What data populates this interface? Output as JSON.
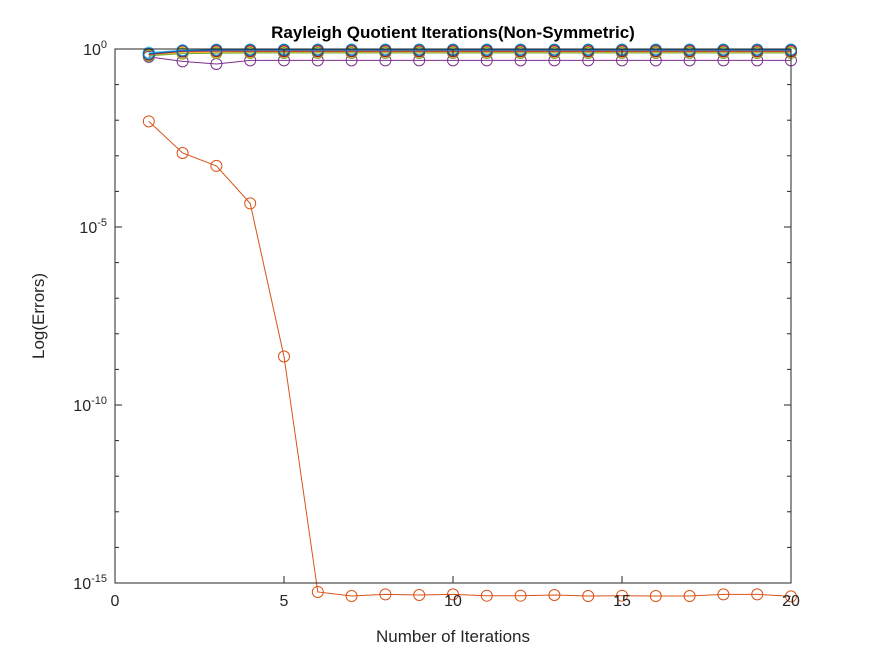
{
  "chart_data": {
    "type": "line",
    "title": "Rayleigh Quotient Iterations(Non-Symmetric)",
    "xlabel": "Number of Iterations",
    "ylabel": "Log(Errors)",
    "xlim": [
      0,
      20
    ],
    "ylim": [
      1e-15,
      1
    ],
    "yscale": "log",
    "grid": false,
    "legend": "none",
    "marker": "circle",
    "xticks": [
      {
        "value": 0,
        "label": "0"
      },
      {
        "value": 5,
        "label": "5"
      },
      {
        "value": 10,
        "label": "10"
      },
      {
        "value": 15,
        "label": "15"
      },
      {
        "value": 20,
        "label": "20"
      }
    ],
    "yticks": [
      {
        "value": 1,
        "base": "10",
        "exp": "0"
      },
      {
        "value": 1e-05,
        "base": "10",
        "exp": "-5"
      },
      {
        "value": 1e-10,
        "base": "10",
        "exp": "-10"
      },
      {
        "value": 1e-15,
        "base": "10",
        "exp": "-15"
      }
    ],
    "x": [
      1,
      2,
      3,
      4,
      5,
      6,
      7,
      8,
      9,
      10,
      11,
      12,
      13,
      14,
      15,
      16,
      17,
      18,
      19,
      20
    ],
    "series": [
      {
        "color": "#0072BD",
        "values": [
          0.72,
          0.88,
          0.9,
          0.91,
          0.91,
          0.91,
          0.91,
          0.91,
          0.91,
          0.91,
          0.91,
          0.91,
          0.91,
          0.91,
          0.91,
          0.91,
          0.91,
          0.91,
          0.91,
          0.91
        ]
      },
      {
        "color": "#D95319",
        "values": [
          0.0093,
          0.0012,
          0.00052,
          4.6e-05,
          2.3e-09,
          5.6e-16,
          4.3e-16,
          4.8e-16,
          4.6e-16,
          4.8e-16,
          4.4e-16,
          4.4e-16,
          4.6e-16,
          4.3e-16,
          4.4e-16,
          4.3e-16,
          4.3e-16,
          4.8e-16,
          4.8e-16,
          4.2e-16
        ]
      },
      {
        "color": "#EDB120",
        "values": [
          0.66,
          0.79,
          0.81,
          0.83,
          0.83,
          0.83,
          0.83,
          0.83,
          0.83,
          0.83,
          0.83,
          0.83,
          0.83,
          0.83,
          0.83,
          0.83,
          0.83,
          0.83,
          0.83,
          0.83
        ]
      },
      {
        "color": "#7E2F8E",
        "values": [
          0.6,
          0.45,
          0.38,
          0.48,
          0.48,
          0.48,
          0.48,
          0.48,
          0.48,
          0.48,
          0.48,
          0.48,
          0.48,
          0.48,
          0.48,
          0.48,
          0.48,
          0.48,
          0.48,
          0.48
        ]
      },
      {
        "color": "#77AC30",
        "values": [
          0.64,
          0.74,
          0.76,
          0.77,
          0.77,
          0.77,
          0.77,
          0.77,
          0.77,
          0.77,
          0.77,
          0.77,
          0.77,
          0.77,
          0.77,
          0.77,
          0.77,
          0.77,
          0.77,
          0.77
        ]
      },
      {
        "color": "#4DBEEE",
        "values": [
          0.8,
          0.92,
          0.93,
          0.93,
          0.93,
          0.93,
          0.93,
          0.93,
          0.93,
          0.93,
          0.93,
          0.93,
          0.93,
          0.93,
          0.93,
          0.93,
          0.93,
          0.93,
          0.93,
          0.93
        ]
      },
      {
        "color": "#A2142F",
        "values": [
          0.7,
          0.86,
          0.87,
          0.87,
          0.87,
          0.87,
          0.87,
          0.87,
          0.87,
          0.87,
          0.87,
          0.87,
          0.87,
          0.87,
          0.87,
          0.87,
          0.87,
          0.87,
          0.87,
          0.87
        ]
      },
      {
        "color": "#0072BD",
        "values": [
          0.74,
          0.9,
          0.95,
          0.96,
          0.96,
          0.96,
          0.96,
          0.96,
          0.96,
          0.96,
          0.96,
          0.96,
          0.96,
          0.96,
          0.96,
          0.96,
          0.96,
          0.96,
          0.96,
          0.96
        ]
      }
    ]
  }
}
